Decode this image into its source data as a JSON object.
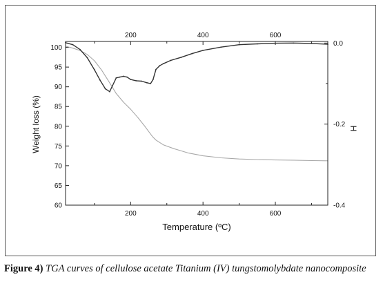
{
  "chart_data": {
    "type": "line",
    "xlabel": "Temperature (ºC)",
    "ylabel": "Weight loss (%)",
    "y2label": "H",
    "xlim": [
      20,
      745
    ],
    "ylim": [
      60,
      101.5
    ],
    "y2lim": [
      -0.4,
      0.004
    ],
    "x_ticks": [
      200,
      400,
      600
    ],
    "x_ticks_top": [
      200,
      400,
      600
    ],
    "y_ticks": [
      100,
      95,
      90,
      85,
      80,
      75,
      70,
      65,
      60
    ],
    "y2_ticks": [
      "0.0",
      "-0.2",
      "-0.4"
    ],
    "y2_tick_values": [
      0.0,
      -0.2,
      -0.4
    ],
    "grid": false,
    "series": [
      {
        "axis": "left",
        "color": "#a8a8a8",
        "x": [
          20,
          40,
          60,
          80,
          100,
          120,
          140,
          160,
          180,
          200,
          220,
          240,
          260,
          270,
          290,
          320,
          360,
          400,
          450,
          500,
          550,
          600,
          650,
          700,
          745
        ],
        "y": [
          100.3,
          99.8,
          99.2,
          98.2,
          96.6,
          94.2,
          91.3,
          88.3,
          86.1,
          84.3,
          82.2,
          79.9,
          77.4,
          76.5,
          75.3,
          74.3,
          73.2,
          72.5,
          72.0,
          71.7,
          71.55,
          71.45,
          71.4,
          71.3,
          71.25
        ]
      },
      {
        "axis": "right",
        "color": "#333333",
        "x": [
          20,
          40,
          60,
          80,
          100,
          115,
          130,
          142,
          150,
          160,
          170,
          180,
          190,
          200,
          215,
          230,
          245,
          255,
          262,
          270,
          280,
          290,
          310,
          340,
          370,
          400,
          450,
          500,
          550,
          600,
          650,
          700,
          745
        ],
        "y": [
          0.001,
          -0.004,
          -0.016,
          -0.036,
          -0.066,
          -0.091,
          -0.113,
          -0.12,
          -0.105,
          -0.086,
          -0.084,
          -0.082,
          -0.084,
          -0.09,
          -0.093,
          -0.094,
          -0.098,
          -0.1,
          -0.09,
          -0.065,
          -0.056,
          -0.051,
          -0.043,
          -0.035,
          -0.026,
          -0.018,
          -0.01,
          -0.004,
          -0.002,
          -0.0005,
          0.0,
          -0.001,
          -0.003
        ]
      }
    ]
  },
  "caption": {
    "label": "Figure 4)",
    "text": "TGA curves of cellulose acetate Titanium (IV) tungstomolybdate nanocomposite"
  }
}
